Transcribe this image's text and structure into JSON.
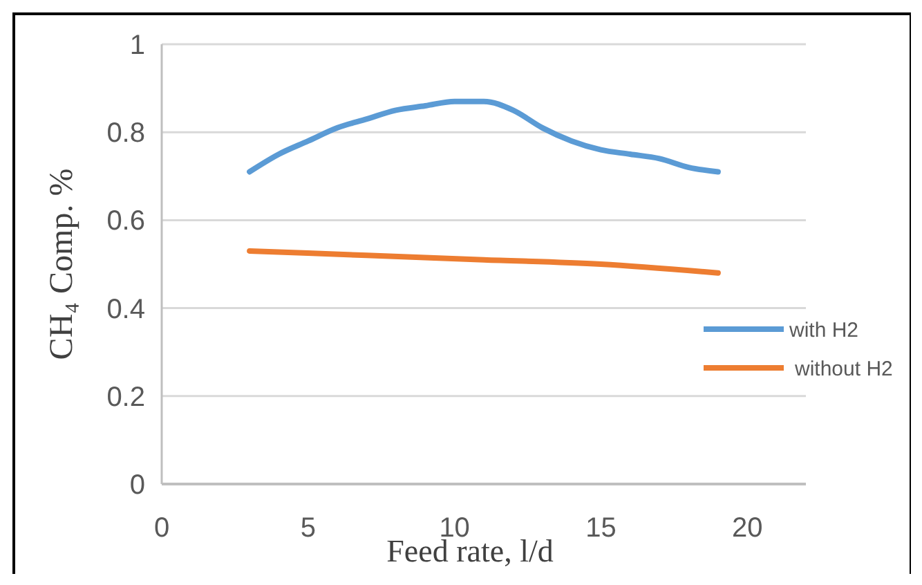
{
  "chart_data": {
    "type": "line",
    "xlabel": "Feed rate, l/d",
    "ylabel": "CH₄ Comp. %",
    "xlim": [
      0,
      22
    ],
    "xticks": [
      0,
      5,
      10,
      15,
      20
    ],
    "ylim": [
      0,
      1
    ],
    "yticks": [
      0,
      0.2,
      0.4,
      0.6,
      0.8,
      1
    ],
    "grid": "y",
    "legend": "right",
    "marker": "none",
    "line_style": "solid",
    "series": [
      {
        "name": "with H2",
        "color": "#5b9bd5",
        "x": [
          3,
          4,
          5,
          6,
          7,
          8,
          9,
          10,
          11,
          12,
          13,
          14,
          15,
          16,
          17,
          18,
          19
        ],
        "values": [
          0.71,
          0.75,
          0.78,
          0.81,
          0.83,
          0.85,
          0.86,
          0.87,
          0.87,
          0.85,
          0.81,
          0.78,
          0.76,
          0.75,
          0.74,
          0.72,
          0.71
        ]
      },
      {
        "name": "without H2",
        "color": "#ed7d31",
        "x": [
          3,
          7,
          11,
          15,
          19
        ],
        "values": [
          0.53,
          0.52,
          0.51,
          0.5,
          0.48
        ]
      }
    ]
  }
}
